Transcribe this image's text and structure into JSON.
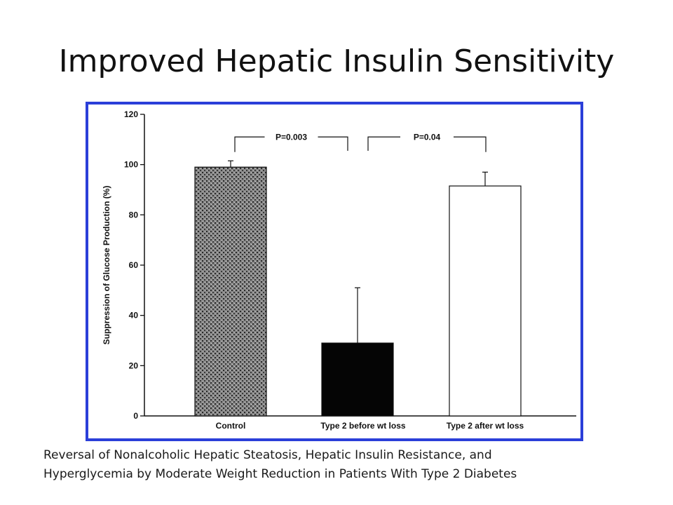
{
  "slide": {
    "title": "Improved Hepatic Insulin Sensitivity",
    "caption_lines": [
      "Reversal of Nonalcoholic Hepatic Steatosis, Hepatic Insulin Resistance, and",
      "Hyperglycemia by Moderate Weight Reduction in Patients With Type 2 Diabetes"
    ],
    "frame_color": "#2b3fd9"
  },
  "chart_data": {
    "type": "bar",
    "categories": [
      "Control",
      "Type 2 before wt loss",
      "Type 2 after wt loss"
    ],
    "values": [
      99,
      29,
      91.5
    ],
    "error_upper": [
      101.5,
      51,
      97
    ],
    "bar_styles": [
      "stippled-gray",
      "black",
      "white"
    ],
    "ylabel": "Suppression of Glucose  Production (%)",
    "ylim": [
      0,
      120
    ],
    "yticks": [
      0,
      20,
      40,
      60,
      80,
      100,
      120
    ],
    "annotations": [
      {
        "text": "P=0.003",
        "from": 0,
        "to": 1
      },
      {
        "text": "P=0.04",
        "from": 1,
        "to": 2
      }
    ],
    "grid": false
  }
}
